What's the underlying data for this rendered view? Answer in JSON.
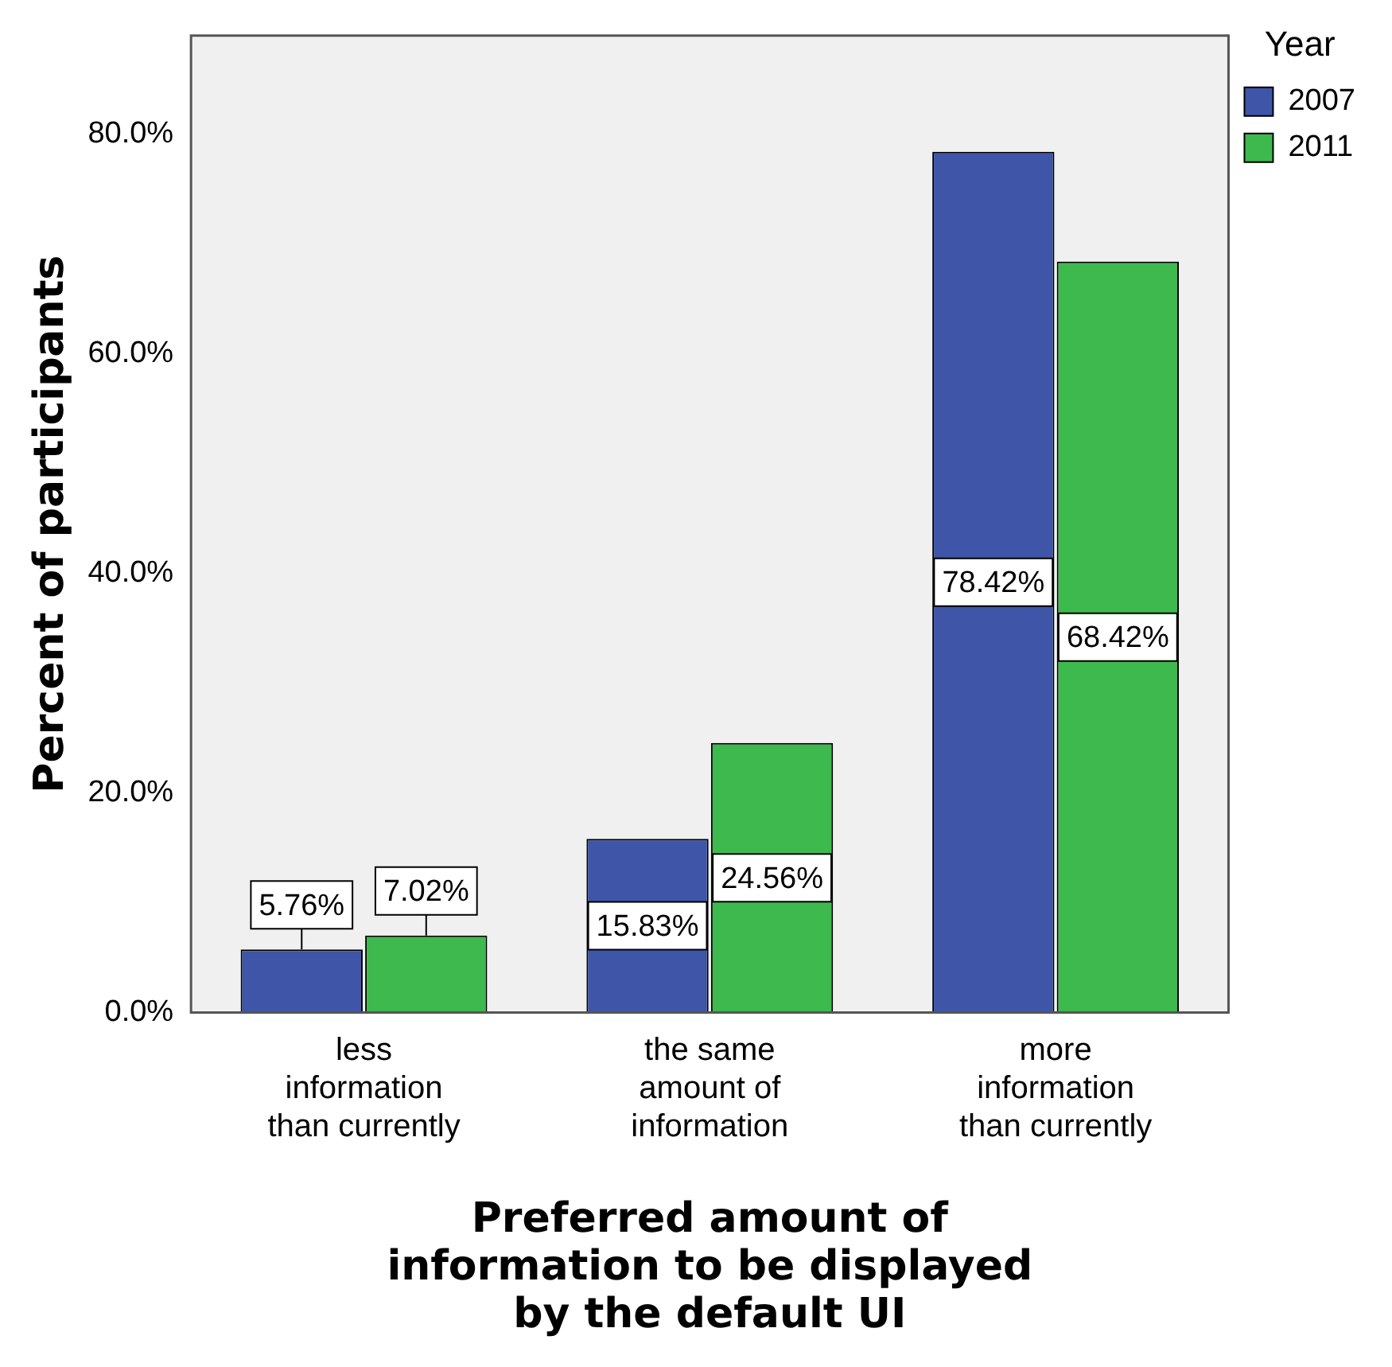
{
  "chart_data": {
    "type": "bar",
    "xlabel": "Preferred amount of information to be displayed by the default UI",
    "ylabel": "Percent of participants",
    "legend_title": "Year",
    "categories": [
      "less information than currently",
      "the same amount of information",
      "more information than currently"
    ],
    "series": [
      {
        "name": "2007",
        "color": "#3e55a8",
        "values": [
          5.76,
          15.83,
          78.42
        ],
        "value_labels": [
          "5.76%",
          "15.83%",
          "78.42%"
        ]
      },
      {
        "name": "2011",
        "color": "#3db94d",
        "values": [
          7.02,
          24.56,
          68.42
        ],
        "value_labels": [
          "7.02%",
          "24.56%",
          "68.42%"
        ]
      }
    ],
    "ylim": [
      0,
      89
    ],
    "yticks": [
      {
        "value": 0,
        "label": "0.0%"
      },
      {
        "value": 20,
        "label": "20.0%"
      },
      {
        "value": 40,
        "label": "40.0%"
      },
      {
        "value": 60,
        "label": "60.0%"
      },
      {
        "value": 80,
        "label": "80.0%"
      }
    ],
    "grid": false,
    "legend": "top right"
  }
}
